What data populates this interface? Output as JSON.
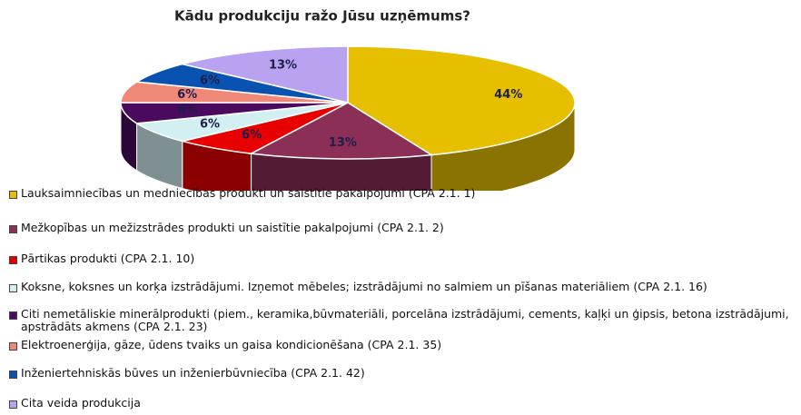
{
  "chart_data": {
    "type": "pie3d",
    "title": "Kādu produkciju ražo Jūsu uzņēmums?",
    "categories": [
      "Lauksaimniecības un medniecības produkti un saistītie pakalpojumi (CPA 2.1. 1)",
      "Mežkopības un mežizstrādes produkti un saistītie pakalpojumi (CPA 2.1. 2)",
      "Pārtikas produkti (CPA 2.1. 10)",
      "Koksne, koksnes un korķa izstrādājumi. Izņemot mēbeles; izstrādājumi no salmiem un pīšanas materiāliem (CPA 2.1. 16)",
      "Citi nemetāliskie minerālprodukti (piem., keramika,būvmateriāli, porcelāna izstrādājumi, cements, kaļķi un ģipsis, betona izstrādājumi, apstrādāts akmens (CPA 2.1. 23)",
      "Elektroenerģija, gāze, ūdens tvaiks un gaisa kondicionēšana (CPA 2.1. 35)",
      "Inženiertehniskās būves un inženierbūvniecība (CPA 2.1. 42)",
      "Cita veida produkcija"
    ],
    "values": [
      44,
      13,
      6,
      6,
      6,
      6,
      6,
      13
    ],
    "value_labels": [
      "44%",
      "13%",
      "6%",
      "6%",
      "6%",
      "6%",
      "6%",
      "13%"
    ],
    "colors": [
      "#e6bf00",
      "#8c2f57",
      "#e80000",
      "#d2f0f2",
      "#4a0a5e",
      "#f08878",
      "#0a52b0",
      "#b9a2f0"
    ]
  }
}
